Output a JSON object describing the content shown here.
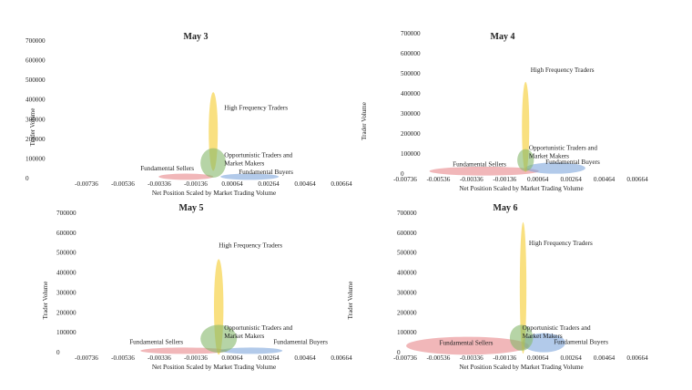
{
  "chart_data": [
    {
      "type": "bubble-ellipses",
      "title": "May 3",
      "xlabel": "Net Position Scaled by Market Trading Volume",
      "ylabel": "Trader Volume",
      "xticks": [
        "-0.00736",
        "-0.00536",
        "-0.00336",
        "-0.00136",
        "0.00064",
        "0.00264",
        "0.00464",
        "0.00664"
      ],
      "yticks": [
        "0",
        "100000",
        "200000",
        "300000",
        "400000",
        "500000",
        "600000",
        "700000"
      ],
      "xlim": [
        -0.00736,
        0.00664
      ],
      "ylim": [
        0,
        700000
      ],
      "groups": [
        {
          "name": "Fundamental Sellers",
          "x": -0.0019,
          "y": 5000,
          "x_radius": 0.0015,
          "y_radius": 16000,
          "color": "#e8878a",
          "label_x": -0.0044,
          "label_y": 38000
        },
        {
          "name": "Fundamental Buyers",
          "x": 0.0016,
          "y": 5000,
          "x_radius": 0.0016,
          "y_radius": 16000,
          "color": "#7fa6dc",
          "label_x": 0.001,
          "label_y": 18000
        },
        {
          "name": "High Frequency Traders",
          "x": -0.0004,
          "y": 235000,
          "x_radius": 0.00025,
          "y_radius": 200000,
          "color": "#f5cc2c",
          "label_x": 0.0002,
          "label_y": 345000
        },
        {
          "name": "Opportunistic Traders and Market Makers",
          "x": -0.0004,
          "y": 75000,
          "x_radius": 0.0007,
          "y_radius": 75000,
          "color": "#86b86a",
          "label_x": 0.0002,
          "label_y": 105000
        }
      ]
    },
    {
      "type": "bubble-ellipses",
      "title": "May 4",
      "xlabel": "Net Position Scaled by Market Trading Volume",
      "ylabel": "Trader Volume",
      "xticks": [
        "-0.00736",
        "-0.00536",
        "-0.00336",
        "-0.00136",
        "0.00064",
        "0.00264",
        "0.00464",
        "0.00664"
      ],
      "yticks": [
        "0",
        "100000",
        "200000",
        "300000",
        "400000",
        "500000",
        "600000",
        "700000"
      ],
      "xlim": [
        -0.00736,
        0.00664
      ],
      "ylim": [
        0,
        700000
      ],
      "groups": [
        {
          "name": "Fundamental Sellers",
          "x": -0.0026,
          "y": 10000,
          "x_radius": 0.0033,
          "y_radius": 22000,
          "color": "#e8878a",
          "label_x": -0.0045,
          "label_y": 35000
        },
        {
          "name": "Fundamental Buyers",
          "x": 0.0017,
          "y": 25000,
          "x_radius": 0.0018,
          "y_radius": 28000,
          "color": "#7fa6dc",
          "label_x": 0.0011,
          "label_y": 45000
        },
        {
          "name": "High Frequency Traders",
          "x": -0.0001,
          "y": 230000,
          "x_radius": 0.00022,
          "y_radius": 225000,
          "color": "#f5cc2c",
          "label_x": 0.0002,
          "label_y": 505000
        },
        {
          "name": "Opportunistic Traders and Market Makers",
          "x": -0.0001,
          "y": 65000,
          "x_radius": 0.0005,
          "y_radius": 55000,
          "color": "#86b86a",
          "label_x": 0.0001,
          "label_y": 115000
        }
      ]
    },
    {
      "type": "bubble-ellipses",
      "title": "May 5",
      "xlabel": "Net Position Scaled by Market Trading Volume",
      "ylabel": "Trader Volume",
      "xticks": [
        "-0.00736",
        "-0.00536",
        "-0.00336",
        "-0.00136",
        "0.00064",
        "0.00264",
        "0.00464",
        "0.00664"
      ],
      "yticks": [
        "0",
        "100000",
        "200000",
        "300000",
        "400000",
        "500000",
        "600000",
        "700000"
      ],
      "xlim": [
        -0.00736,
        0.00664
      ],
      "ylim": [
        0,
        700000
      ],
      "groups": [
        {
          "name": "Fundamental Sellers",
          "x": -0.002,
          "y": 5000,
          "x_radius": 0.0024,
          "y_radius": 16000,
          "color": "#e8878a",
          "label_x": -0.005,
          "label_y": 40000
        },
        {
          "name": "Fundamental Buyers",
          "x": 0.0017,
          "y": 5000,
          "x_radius": 0.0017,
          "y_radius": 16000,
          "color": "#7fa6dc",
          "label_x": 0.0029,
          "label_y": 40000
        },
        {
          "name": "High Frequency Traders",
          "x": -0.0001,
          "y": 225000,
          "x_radius": 0.00026,
          "y_radius": 240000,
          "color": "#f5cc2c",
          "label_x": -0.0001,
          "label_y": 525000
        },
        {
          "name": "Opportunistic Traders and Market Makers",
          "x": -0.0001,
          "y": 65000,
          "x_radius": 0.001,
          "y_radius": 70000,
          "color": "#86b86a",
          "label_x": 0.0002,
          "label_y": 110000
        }
      ]
    },
    {
      "type": "bubble-ellipses",
      "title": "May 6",
      "xlabel": "Net Position Scaled by Market Trading Volume",
      "ylabel": "Trader Volume",
      "xticks": [
        "-0.00736",
        "-0.00536",
        "-0.00336",
        "-0.00136",
        "0.00064",
        "0.00264",
        "0.00464",
        "0.00664"
      ],
      "yticks": [
        "0",
        "100000",
        "200000",
        "300000",
        "400000",
        "500000",
        "600000",
        "700000"
      ],
      "xlim": [
        -0.00736,
        0.00664
      ],
      "ylim": [
        0,
        700000
      ],
      "groups": [
        {
          "name": "Fundamental Sellers",
          "x": -0.0036,
          "y": 30000,
          "x_radius": 0.0037,
          "y_radius": 45000,
          "color": "#e8878a",
          "label_x": -0.0053,
          "label_y": 35000
        },
        {
          "name": "Fundamental Buyers",
          "x": 0.001,
          "y": 45000,
          "x_radius": 0.0013,
          "y_radius": 48000,
          "color": "#7fa6dc",
          "label_x": 0.0016,
          "label_y": 40000
        },
        {
          "name": "High Frequency Traders",
          "x": -0.00025,
          "y": 320000,
          "x_radius": 0.0002,
          "y_radius": 330000,
          "color": "#f5cc2c",
          "label_x": 0.0001,
          "label_y": 535000
        },
        {
          "name": "Opportunistic Traders and Market Makers",
          "x": -0.00035,
          "y": 70000,
          "x_radius": 0.0007,
          "y_radius": 65000,
          "color": "#86b86a",
          "label_x": -0.0003,
          "label_y": 110000
        }
      ]
    }
  ]
}
